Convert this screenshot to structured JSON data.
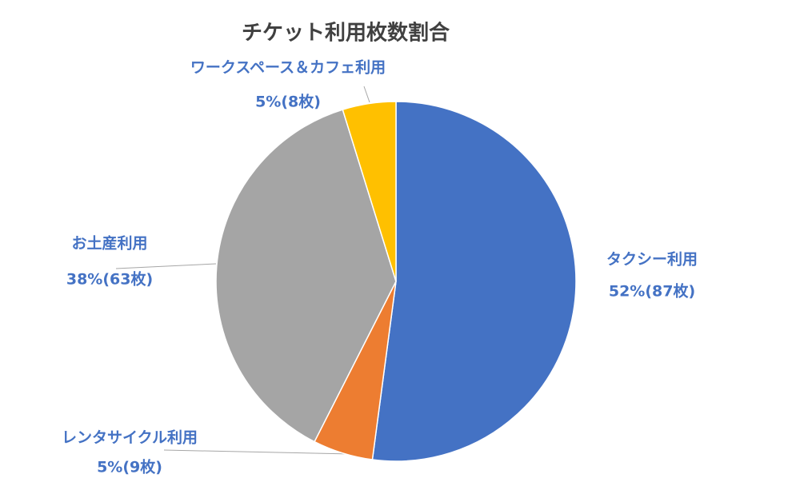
{
  "chart_data": {
    "type": "pie",
    "title": "チケット利用枚数割合",
    "categories": [
      "タクシー利用",
      "レンタサイクル利用",
      "お土産利用",
      "ワークスペース＆カフェ利用"
    ],
    "values": [
      87,
      9,
      63,
      8
    ],
    "value_labels": [
      "52%(87枚)",
      "5%(9枚)",
      "38%(63枚)",
      "5%(8枚)"
    ],
    "colors": [
      "#4472c4",
      "#ed7d31",
      "#a5a5a5",
      "#ffc000"
    ]
  }
}
